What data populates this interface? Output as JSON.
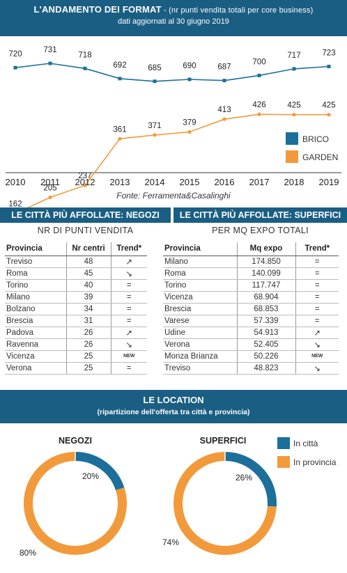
{
  "header": {
    "title": "L'ANDAMENTO DEI FORMAT",
    "title_note": " - (nr punti vendita totali per core business)",
    "subtitle": "dati aggiornati al 30 giugno 2019"
  },
  "source": "Fonte: Ferramenta&Casalinghi",
  "colors": {
    "brico": "#1b6f9a",
    "garden": "#f29a3b",
    "banner": "#1b5e83"
  },
  "chart_data": [
    {
      "type": "line",
      "x": [
        "2010",
        "2011",
        "2012",
        "2013",
        "2014",
        "2015",
        "2016",
        "2017",
        "2018",
        "2019"
      ],
      "series": [
        {
          "name": "BRICO",
          "values": [
            720,
            731,
            718,
            692,
            685,
            690,
            687,
            700,
            717,
            723
          ]
        },
        {
          "name": "GARDEN",
          "values": [
            162,
            205,
            237,
            361,
            371,
            379,
            413,
            426,
            425,
            425
          ]
        }
      ],
      "legend": "right",
      "grid": false
    },
    {
      "type": "pie",
      "title": "NEGOZI",
      "categories": [
        "In città",
        "In provincia"
      ],
      "values": [
        20,
        80
      ],
      "labels": [
        "20%",
        "80%"
      ]
    },
    {
      "type": "pie",
      "title": "SUPERFICI",
      "categories": [
        "In città",
        "In provincia"
      ],
      "values": [
        26,
        74
      ],
      "labels": [
        "26%",
        "74%"
      ]
    }
  ],
  "negozi": {
    "title": "LE CITTÀ PIÙ AFFOLLATE: NEGOZI",
    "subtitle": "NR DI PUNTI VENDITA",
    "columns": [
      "Provincia",
      "Nr centri",
      "Trend*"
    ],
    "rows": [
      {
        "provincia": "Treviso",
        "value": "48",
        "trend": "↗"
      },
      {
        "provincia": "Roma",
        "value": "45",
        "trend": "↘"
      },
      {
        "provincia": "Torino",
        "value": "40",
        "trend": "="
      },
      {
        "provincia": "Milano",
        "value": "39",
        "trend": "="
      },
      {
        "provincia": "Bolzano",
        "value": "34",
        "trend": "="
      },
      {
        "provincia": "Brescia",
        "value": "31",
        "trend": "="
      },
      {
        "provincia": "Padova",
        "value": "26",
        "trend": "↗"
      },
      {
        "provincia": "Ravenna",
        "value": "26",
        "trend": "↘"
      },
      {
        "provincia": "Vicenza",
        "value": "25",
        "trend": "NEW"
      },
      {
        "provincia": "Verona",
        "value": "25",
        "trend": "="
      }
    ]
  },
  "superfici": {
    "title": "LE CITTÀ PIÙ AFFOLLATE: SUPERFICI",
    "subtitle": "PER MQ EXPO TOTALI",
    "columns": [
      "Provincia",
      "Mq expo",
      "Trend*"
    ],
    "rows": [
      {
        "provincia": "Milano",
        "value": "174.850",
        "trend": "="
      },
      {
        "provincia": "Roma",
        "value": "140.099",
        "trend": "="
      },
      {
        "provincia": "Torino",
        "value": "117.747",
        "trend": "="
      },
      {
        "provincia": "Vicenza",
        "value": "68.904",
        "trend": "="
      },
      {
        "provincia": "Brescia",
        "value": "68.853",
        "trend": "="
      },
      {
        "provincia": "Varese",
        "value": "57.339",
        "trend": "="
      },
      {
        "provincia": "Udine",
        "value": "54.913",
        "trend": "↗"
      },
      {
        "provincia": "Verona",
        "value": "52.405",
        "trend": "↘"
      },
      {
        "provincia": "Monza Brianza",
        "value": "50.226",
        "trend": "NEW"
      },
      {
        "provincia": "Treviso",
        "value": "48.823",
        "trend": "↘"
      }
    ]
  },
  "location": {
    "title": "LE LOCATION",
    "subtitle": "(ripartizione dell'offerta tra città e provincia)"
  }
}
